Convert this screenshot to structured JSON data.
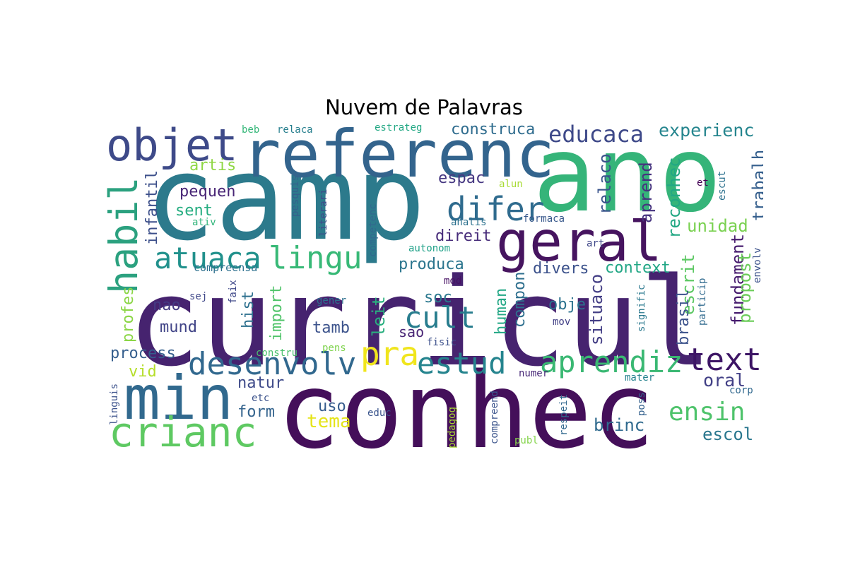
{
  "chart_data": {
    "type": "wordcloud",
    "title": "Nuvem de Palavras",
    "colormap": "viridis",
    "background": "#ffffff",
    "words": [
      {
        "text": "curricul",
        "c": "#46236f"
      },
      {
        "text": "conhec",
        "c": "#440f5a"
      },
      {
        "text": "camp",
        "c": "#2c7a8c"
      },
      {
        "text": "ano",
        "c": "#35b479"
      },
      {
        "text": "referenc",
        "c": "#33648d"
      },
      {
        "text": "min",
        "c": "#31698e"
      },
      {
        "text": "objet",
        "c": "#3e4a89"
      },
      {
        "text": "geral",
        "c": "#46145f"
      },
      {
        "text": "crianc",
        "c": "#5ec962"
      },
      {
        "text": "habil",
        "c": "#2ba17f"
      },
      {
        "text": "lingu",
        "c": "#38b977"
      },
      {
        "text": "atuaca",
        "c": "#21918c"
      },
      {
        "text": "difer",
        "c": "#2f6b8e"
      },
      {
        "text": "desenvolv",
        "c": "#31688e"
      },
      {
        "text": "aprendiz",
        "c": "#3ab873"
      },
      {
        "text": "text",
        "c": "#3d1565"
      },
      {
        "text": "estud",
        "c": "#25848e"
      },
      {
        "text": "pra",
        "c": "#f0e51d"
      },
      {
        "text": "cult",
        "c": "#287d8e"
      },
      {
        "text": "ensin",
        "c": "#4ec36b"
      },
      {
        "text": "educaca",
        "c": "#3e4989"
      },
      {
        "text": "experienc",
        "c": "#25858e"
      },
      {
        "text": "construca",
        "c": "#2f6c8e"
      },
      {
        "text": "tema",
        "c": "#e5e419"
      },
      {
        "text": "brinc",
        "c": "#306a8e"
      },
      {
        "text": "escol",
        "c": "#2a778e"
      },
      {
        "text": "oral",
        "c": "#424086"
      },
      {
        "text": "unidad",
        "c": "#7ad151"
      },
      {
        "text": "reconhec",
        "c": "#22a884"
      },
      {
        "text": "aprend",
        "c": "#46337f"
      },
      {
        "text": "relaco",
        "c": "#3a548c"
      },
      {
        "text": "trabalh",
        "c": "#355f8d"
      },
      {
        "text": "fundament",
        "c": "#481d6f"
      },
      {
        "text": "situaco",
        "c": "#433e85"
      },
      {
        "text": "escrit",
        "c": "#5cc863"
      },
      {
        "text": "propost",
        "c": "#6ccd5a"
      },
      {
        "text": "brasil",
        "c": "#3b528b"
      },
      {
        "text": "context",
        "c": "#21a685"
      },
      {
        "text": "divers",
        "c": "#3b518b"
      },
      {
        "text": "compon",
        "c": "#2e6f8e"
      },
      {
        "text": "human",
        "c": "#22a785"
      },
      {
        "text": "produca",
        "c": "#2b758e"
      },
      {
        "text": "direit",
        "c": "#472c7a"
      },
      {
        "text": "espac",
        "c": "#453781"
      },
      {
        "text": "obje",
        "c": "#2c728e"
      },
      {
        "text": "leit",
        "c": "#29af7f"
      },
      {
        "text": "soc",
        "c": "#2a788e"
      },
      {
        "text": "sao",
        "c": "#482475"
      },
      {
        "text": "tamb",
        "c": "#3b528b"
      },
      {
        "text": "hist",
        "c": "#2d708e"
      },
      {
        "text": "import",
        "c": "#50c46a"
      },
      {
        "text": "natur",
        "c": "#3e4a89"
      },
      {
        "text": "form",
        "c": "#33638d"
      },
      {
        "text": "uso",
        "c": "#365c8d"
      },
      {
        "text": "process",
        "c": "#355e8d"
      },
      {
        "text": "pequen",
        "c": "#482576"
      },
      {
        "text": "sent",
        "c": "#26ad81"
      },
      {
        "text": "artis",
        "c": "#8fd744"
      },
      {
        "text": "infantil",
        "c": "#3c4f8a"
      },
      {
        "text": "profes",
        "c": "#8bd646"
      },
      {
        "text": "nao",
        "c": "#443a83"
      },
      {
        "text": "mund",
        "c": "#414487"
      },
      {
        "text": "vid",
        "c": "#b5de2b"
      },
      {
        "text": "compreensa",
        "c": "#2d708e"
      },
      {
        "text": "sej",
        "c": "#3f4788"
      },
      {
        "text": "faix",
        "c": "#3f4889"
      },
      {
        "text": "ativ",
        "c": "#31b57b"
      },
      {
        "text": "pesquis",
        "c": "#355f8d"
      },
      {
        "text": "literari",
        "c": "#3e4c8a"
      },
      {
        "text": "competenc",
        "c": "#31688e"
      },
      {
        "text": "autonom",
        "c": "#1fa188"
      },
      {
        "text": "mod",
        "c": "#471164"
      },
      {
        "text": "gener",
        "c": "#2d708e"
      },
      {
        "text": "fisic",
        "c": "#3c508b"
      },
      {
        "text": "pens",
        "c": "#7fd34e"
      },
      {
        "text": "constru",
        "c": "#4ac16d"
      },
      {
        "text": "etc",
        "c": "#3b528b"
      },
      {
        "text": "educ",
        "c": "#3a548c"
      },
      {
        "text": "linguis",
        "c": "#3b518b"
      },
      {
        "text": "pedagog",
        "c": "#aadc32"
      },
      {
        "text": "compreend",
        "c": "#3a538b"
      },
      {
        "text": "publ",
        "c": "#84d44b"
      },
      {
        "text": "respeit",
        "c": "#31688e"
      },
      {
        "text": "numer",
        "c": "#482878"
      },
      {
        "text": "mov",
        "c": "#424086"
      },
      {
        "text": "signific",
        "c": "#2a788e"
      },
      {
        "text": "particip",
        "c": "#306a8e"
      },
      {
        "text": "poss",
        "c": "#34618d"
      },
      {
        "text": "mater",
        "c": "#26828e"
      },
      {
        "text": "corp",
        "c": "#31688e"
      },
      {
        "text": "envolv",
        "c": "#3b518b"
      },
      {
        "text": "escut",
        "c": "#2c718e"
      },
      {
        "text": "et",
        "c": "#440154"
      },
      {
        "text": "art",
        "c": "#3f4788"
      },
      {
        "text": "formaca",
        "c": "#38598c"
      },
      {
        "text": "analis",
        "c": "#2c718e"
      },
      {
        "text": "alun",
        "c": "#a8db34"
      },
      {
        "text": "beb",
        "c": "#35b779"
      },
      {
        "text": "relaca",
        "c": "#277f8e"
      },
      {
        "text": "estrateg",
        "c": "#22a884"
      }
    ]
  }
}
